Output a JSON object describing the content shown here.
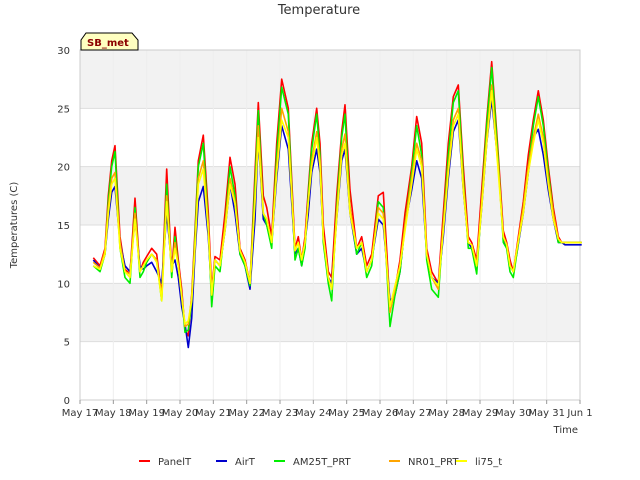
{
  "chart_data": {
    "type": "line",
    "title": "Temperature",
    "xlabel": "Time",
    "ylabel": "Temperatures (C)",
    "badge": "SB_met",
    "ylim": [
      0,
      30
    ],
    "yticks": [
      0,
      5,
      10,
      15,
      20,
      25,
      30
    ],
    "xlim": [
      0,
      15
    ],
    "xtick_labels": [
      "May 17",
      "May 18",
      "May 19",
      "May 20",
      "May 21",
      "May 22",
      "May 23",
      "May 24",
      "May 25",
      "May 26",
      "May 27",
      "May 28",
      "May 29",
      "May 30",
      "May 31",
      "Jun 1"
    ],
    "grid": true,
    "legend_position": "bottom",
    "series": [
      {
        "name": "PanelT",
        "color": "#ff0000",
        "x": [
          0.4,
          0.6,
          0.75,
          0.85,
          0.95,
          1.05,
          1.2,
          1.35,
          1.5,
          1.65,
          1.8,
          1.9,
          2.0,
          2.15,
          2.3,
          2.45,
          2.6,
          2.75,
          2.85,
          2.95,
          3.05,
          3.15,
          3.25,
          3.35,
          3.45,
          3.55,
          3.7,
          3.85,
          3.95,
          4.05,
          4.2,
          4.35,
          4.5,
          4.65,
          4.8,
          4.95,
          5.1,
          5.25,
          5.35,
          5.5,
          5.6,
          5.75,
          5.9,
          6.05,
          6.25,
          6.45,
          6.55,
          6.65,
          6.75,
          6.85,
          6.95,
          7.1,
          7.2,
          7.3,
          7.45,
          7.55,
          7.7,
          7.85,
          7.95,
          8.1,
          8.3,
          8.45,
          8.6,
          8.75,
          8.95,
          9.1,
          9.3,
          9.45,
          9.6,
          9.75,
          9.95,
          10.1,
          10.25,
          10.4,
          10.55,
          10.75,
          10.9,
          11.05,
          11.2,
          11.35,
          11.5,
          11.65,
          11.75,
          11.9,
          12.05,
          12.2,
          12.35,
          12.55,
          12.7,
          12.8,
          12.9,
          13.0,
          13.1,
          13.3,
          13.45,
          13.6,
          13.75,
          13.9,
          14.05,
          14.2,
          14.35,
          14.45,
          14.55,
          14.65,
          14.75,
          14.85,
          14.95,
          15.0,
          15.05
        ],
        "y": [
          12.2,
          11.5,
          13.0,
          17.5,
          20.5,
          21.8,
          14.0,
          11.2,
          10.8,
          17.3,
          11.0,
          11.8,
          12.3,
          13.0,
          12.5,
          9.0,
          19.8,
          11.0,
          14.8,
          12.0,
          9.5,
          6.0,
          5.5,
          9.0,
          14.5,
          20.5,
          22.7,
          16.0,
          9.5,
          12.3,
          12.0,
          16.0,
          20.8,
          18.5,
          13.0,
          12.0,
          10.0,
          19.5,
          25.5,
          17.5,
          16.5,
          14.0,
          22.0,
          27.5,
          25.0,
          13.0,
          14.0,
          12.0,
          14.0,
          18.0,
          22.0,
          25.0,
          22.0,
          15.0,
          11.0,
          10.5,
          17.5,
          23.0,
          25.3,
          18.0,
          13.0,
          14.0,
          11.5,
          12.5,
          17.5,
          17.8,
          8.0,
          9.5,
          12.0,
          16.0,
          20.0,
          24.3,
          22.0,
          13.0,
          11.0,
          10.0,
          16.0,
          22.0,
          26.0,
          27.0,
          20.0,
          14.0,
          13.5,
          12.0,
          18.0,
          24.0,
          29.0,
          21.0,
          14.5,
          13.5,
          12.0,
          11.0,
          13.0,
          17.0,
          21.0,
          24.0,
          26.5,
          24.0,
          20.0,
          16.5,
          14.0,
          13.5,
          13.5,
          13.5,
          13.5,
          13.5,
          13.5,
          13.5,
          13.5
        ]
      },
      {
        "name": "AirT",
        "color": "#0000cc",
        "x": [
          0.4,
          0.6,
          0.75,
          0.85,
          0.95,
          1.05,
          1.2,
          1.35,
          1.5,
          1.65,
          1.8,
          1.9,
          2.0,
          2.15,
          2.3,
          2.45,
          2.6,
          2.75,
          2.85,
          2.95,
          3.05,
          3.15,
          3.25,
          3.35,
          3.45,
          3.55,
          3.7,
          3.85,
          3.95,
          4.05,
          4.2,
          4.35,
          4.5,
          4.65,
          4.8,
          4.95,
          5.1,
          5.25,
          5.35,
          5.5,
          5.6,
          5.75,
          5.9,
          6.05,
          6.25,
          6.45,
          6.55,
          6.65,
          6.75,
          6.85,
          6.95,
          7.1,
          7.2,
          7.3,
          7.45,
          7.55,
          7.7,
          7.85,
          7.95,
          8.1,
          8.3,
          8.45,
          8.6,
          8.75,
          8.95,
          9.1,
          9.3,
          9.45,
          9.6,
          9.75,
          9.95,
          10.1,
          10.25,
          10.4,
          10.55,
          10.75,
          10.9,
          11.05,
          11.2,
          11.35,
          11.5,
          11.65,
          11.75,
          11.9,
          12.05,
          12.2,
          12.35,
          12.55,
          12.7,
          12.8,
          12.9,
          13.0,
          13.1,
          13.3,
          13.45,
          13.6,
          13.75,
          13.9,
          14.05,
          14.2,
          14.35,
          14.45,
          14.55,
          14.65,
          14.75,
          14.85,
          14.95,
          15.0,
          15.05
        ],
        "y": [
          12.0,
          11.3,
          12.5,
          15.5,
          17.8,
          18.3,
          13.5,
          11.5,
          11.0,
          15.5,
          11.5,
          11.2,
          11.5,
          11.8,
          11.0,
          10.0,
          16.0,
          11.5,
          12.0,
          10.5,
          8.0,
          6.5,
          4.5,
          7.0,
          12.5,
          17.0,
          18.3,
          14.0,
          9.0,
          12.0,
          11.5,
          14.5,
          18.5,
          16.0,
          12.5,
          11.5,
          9.5,
          15.5,
          22.5,
          15.5,
          15.0,
          13.5,
          19.0,
          23.5,
          21.5,
          12.5,
          13.0,
          11.5,
          13.5,
          16.0,
          19.5,
          21.5,
          19.5,
          14.0,
          10.5,
          10.0,
          15.5,
          20.5,
          21.5,
          16.0,
          12.5,
          13.0,
          11.0,
          12.0,
          15.5,
          15.0,
          8.5,
          9.0,
          11.0,
          15.0,
          18.0,
          20.5,
          19.0,
          12.5,
          10.5,
          10.0,
          14.0,
          19.0,
          23.0,
          24.0,
          18.0,
          13.5,
          13.0,
          11.5,
          16.5,
          22.0,
          25.8,
          20.0,
          14.0,
          13.0,
          11.5,
          11.0,
          12.5,
          16.0,
          19.5,
          22.5,
          23.2,
          21.0,
          18.0,
          15.5,
          13.5,
          13.5,
          13.3,
          13.3,
          13.3,
          13.3,
          13.3,
          13.3,
          13.3
        ]
      },
      {
        "name": "AM25T_PRT",
        "color": "#00ee00",
        "x": [
          0.4,
          0.6,
          0.75,
          0.85,
          0.95,
          1.05,
          1.2,
          1.35,
          1.5,
          1.65,
          1.8,
          1.9,
          2.0,
          2.15,
          2.3,
          2.45,
          2.6,
          2.75,
          2.85,
          2.95,
          3.05,
          3.15,
          3.25,
          3.35,
          3.45,
          3.55,
          3.7,
          3.85,
          3.95,
          4.05,
          4.2,
          4.35,
          4.5,
          4.65,
          4.8,
          4.95,
          5.1,
          5.25,
          5.35,
          5.5,
          5.6,
          5.75,
          5.9,
          6.05,
          6.25,
          6.45,
          6.55,
          6.65,
          6.75,
          6.85,
          6.95,
          7.1,
          7.2,
          7.3,
          7.45,
          7.55,
          7.7,
          7.85,
          7.95,
          8.1,
          8.3,
          8.45,
          8.6,
          8.75,
          8.95,
          9.1,
          9.3,
          9.45,
          9.6,
          9.75,
          9.95,
          10.1,
          10.25,
          10.4,
          10.55,
          10.75,
          10.9,
          11.05,
          11.2,
          11.35,
          11.5,
          11.65,
          11.75,
          11.9,
          12.05,
          12.2,
          12.35,
          12.55,
          12.7,
          12.8,
          12.9,
          13.0,
          13.1,
          13.3,
          13.45,
          13.6,
          13.75,
          13.9,
          14.05,
          14.2,
          14.35,
          14.45,
          14.55,
          14.65,
          14.75,
          14.85,
          14.95,
          15.0,
          15.05
        ],
        "y": [
          11.5,
          11.0,
          12.5,
          17.0,
          20.0,
          21.3,
          13.0,
          10.5,
          10.0,
          16.5,
          10.5,
          11.0,
          11.8,
          12.5,
          12.0,
          8.5,
          18.5,
          10.5,
          14.0,
          11.5,
          9.0,
          5.8,
          6.0,
          8.5,
          14.0,
          20.0,
          22.0,
          15.0,
          8.0,
          11.5,
          11.0,
          15.0,
          20.0,
          17.5,
          12.5,
          11.5,
          9.8,
          18.5,
          24.8,
          16.0,
          15.0,
          13.0,
          21.0,
          26.8,
          24.5,
          12.0,
          13.0,
          11.5,
          13.0,
          17.5,
          21.5,
          24.5,
          21.0,
          13.5,
          10.0,
          8.5,
          16.5,
          22.5,
          24.5,
          16.5,
          12.5,
          13.5,
          10.5,
          11.5,
          17.0,
          16.5,
          6.3,
          9.0,
          11.0,
          15.0,
          19.5,
          23.5,
          21.0,
          12.0,
          9.5,
          8.8,
          15.0,
          21.0,
          25.5,
          26.5,
          19.0,
          13.0,
          13.0,
          10.8,
          17.0,
          23.5,
          28.5,
          20.5,
          13.5,
          13.0,
          11.0,
          10.5,
          12.5,
          16.5,
          20.0,
          23.5,
          26.0,
          23.5,
          19.5,
          16.0,
          13.5,
          13.5,
          13.5,
          13.5,
          13.5,
          13.5,
          13.5,
          13.5,
          13.5
        ]
      },
      {
        "name": "NR01_PRT",
        "color": "#ffa500",
        "x": [
          0.4,
          0.6,
          0.75,
          0.85,
          0.95,
          1.05,
          1.2,
          1.35,
          1.5,
          1.65,
          1.8,
          1.9,
          2.0,
          2.15,
          2.3,
          2.45,
          2.6,
          2.75,
          2.85,
          2.95,
          3.05,
          3.15,
          3.25,
          3.35,
          3.45,
          3.55,
          3.7,
          3.85,
          3.95,
          4.05,
          4.2,
          4.35,
          4.5,
          4.65,
          4.8,
          4.95,
          5.1,
          5.25,
          5.35,
          5.5,
          5.6,
          5.75,
          5.9,
          6.05,
          6.25,
          6.45,
          6.55,
          6.65,
          6.75,
          6.85,
          6.95,
          7.1,
          7.2,
          7.3,
          7.45,
          7.55,
          7.7,
          7.85,
          7.95,
          8.1,
          8.3,
          8.45,
          8.6,
          8.75,
          8.95,
          9.1,
          9.3,
          9.45,
          9.6,
          9.75,
          9.95,
          10.1,
          10.25,
          10.4,
          10.55,
          10.75,
          10.9,
          11.05,
          11.2,
          11.35,
          11.5,
          11.65,
          11.75,
          11.9,
          12.05,
          12.2,
          12.35,
          12.55,
          12.7,
          12.8,
          12.9,
          13.0,
          13.1,
          13.3,
          13.45,
          13.6,
          13.75,
          13.9,
          14.05,
          14.2,
          14.35,
          14.45,
          14.55,
          14.65,
          14.75,
          14.85,
          14.95,
          15.0,
          15.05
        ],
        "y": [
          11.8,
          11.3,
          12.8,
          16.5,
          19.0,
          19.5,
          13.5,
          11.0,
          10.8,
          16.0,
          11.0,
          11.5,
          12.0,
          12.5,
          12.0,
          8.8,
          17.5,
          11.0,
          13.5,
          11.5,
          9.0,
          6.3,
          6.5,
          8.8,
          13.5,
          19.0,
          20.5,
          15.0,
          9.0,
          12.0,
          11.5,
          15.0,
          19.0,
          17.0,
          12.8,
          11.8,
          10.0,
          17.5,
          23.5,
          16.0,
          15.5,
          13.5,
          20.0,
          25.0,
          23.0,
          12.8,
          13.5,
          12.0,
          13.5,
          17.0,
          20.5,
          23.0,
          20.5,
          14.0,
          10.5,
          9.5,
          16.0,
          21.5,
          22.8,
          16.5,
          13.0,
          13.5,
          11.0,
          12.0,
          16.5,
          16.0,
          7.5,
          9.5,
          11.5,
          15.0,
          19.0,
          22.0,
          20.5,
          12.5,
          10.5,
          9.5,
          15.0,
          20.0,
          24.0,
          25.0,
          18.5,
          13.5,
          13.3,
          11.5,
          17.0,
          22.5,
          27.0,
          20.0,
          14.0,
          13.3,
          11.5,
          11.0,
          12.8,
          16.5,
          20.0,
          22.5,
          24.5,
          22.5,
          19.0,
          16.0,
          13.8,
          13.5,
          13.5,
          13.5,
          13.5,
          13.5,
          13.5,
          13.5,
          13.5
        ]
      },
      {
        "name": "li75_t",
        "color": "#ffff00",
        "x": [
          0.4,
          0.6,
          0.75,
          0.85,
          0.95,
          1.05,
          1.2,
          1.35,
          1.5,
          1.65,
          1.8,
          1.9,
          2.0,
          2.15,
          2.3,
          2.45,
          2.6,
          2.75,
          2.85,
          2.95,
          3.05,
          3.15,
          3.25,
          3.35,
          3.45,
          3.55,
          3.7,
          3.85,
          3.95,
          4.05,
          4.2,
          4.35,
          4.5,
          4.65,
          4.8,
          4.95,
          5.1,
          5.25,
          5.35,
          5.5,
          5.6,
          5.75,
          5.9,
          6.05,
          6.25,
          6.45,
          6.55,
          6.65,
          6.75,
          6.85,
          6.95,
          7.1,
          7.2,
          7.3,
          7.45,
          7.55,
          7.7,
          7.85,
          7.95,
          8.1,
          8.3,
          8.45,
          8.6,
          8.75,
          8.95,
          9.1,
          9.3,
          9.45,
          9.6,
          9.75,
          9.95,
          10.1,
          10.25,
          10.4,
          10.55,
          10.75,
          10.9,
          11.05,
          11.2,
          11.35,
          11.5,
          11.65,
          11.75,
          11.9,
          12.05,
          12.2,
          12.35,
          12.55,
          12.7,
          12.8,
          12.9,
          13.0,
          13.1,
          13.3,
          13.45,
          13.6,
          13.75,
          13.9,
          14.05,
          14.2,
          14.35,
          14.45,
          14.55,
          14.65,
          14.75,
          14.85,
          14.95,
          15.0,
          15.05
        ],
        "y": [
          11.5,
          11.2,
          12.5,
          16.0,
          18.5,
          19.0,
          13.0,
          11.0,
          10.5,
          15.5,
          11.0,
          11.5,
          12.0,
          12.5,
          11.8,
          8.5,
          17.0,
          11.0,
          13.0,
          11.5,
          8.8,
          6.5,
          6.8,
          8.5,
          13.0,
          18.5,
          19.8,
          14.5,
          9.0,
          12.0,
          11.5,
          14.5,
          18.5,
          16.8,
          12.8,
          11.8,
          10.0,
          17.0,
          22.5,
          16.0,
          15.5,
          13.5,
          19.5,
          24.0,
          22.5,
          12.8,
          13.5,
          12.0,
          13.5,
          17.0,
          20.0,
          22.5,
          20.0,
          14.0,
          10.5,
          9.5,
          15.5,
          21.0,
          22.0,
          16.0,
          13.0,
          13.5,
          11.0,
          12.0,
          16.0,
          15.5,
          8.0,
          9.8,
          11.5,
          14.5,
          18.5,
          21.5,
          20.0,
          12.5,
          10.5,
          9.8,
          14.5,
          19.5,
          23.5,
          24.5,
          18.0,
          13.5,
          13.3,
          11.5,
          16.5,
          22.0,
          26.5,
          19.5,
          14.0,
          13.3,
          11.5,
          11.0,
          12.8,
          16.0,
          19.5,
          22.0,
          24.0,
          22.0,
          18.5,
          15.5,
          13.8,
          13.5,
          13.5,
          13.5,
          13.5,
          13.5,
          13.5,
          13.5,
          13.5
        ]
      }
    ]
  }
}
